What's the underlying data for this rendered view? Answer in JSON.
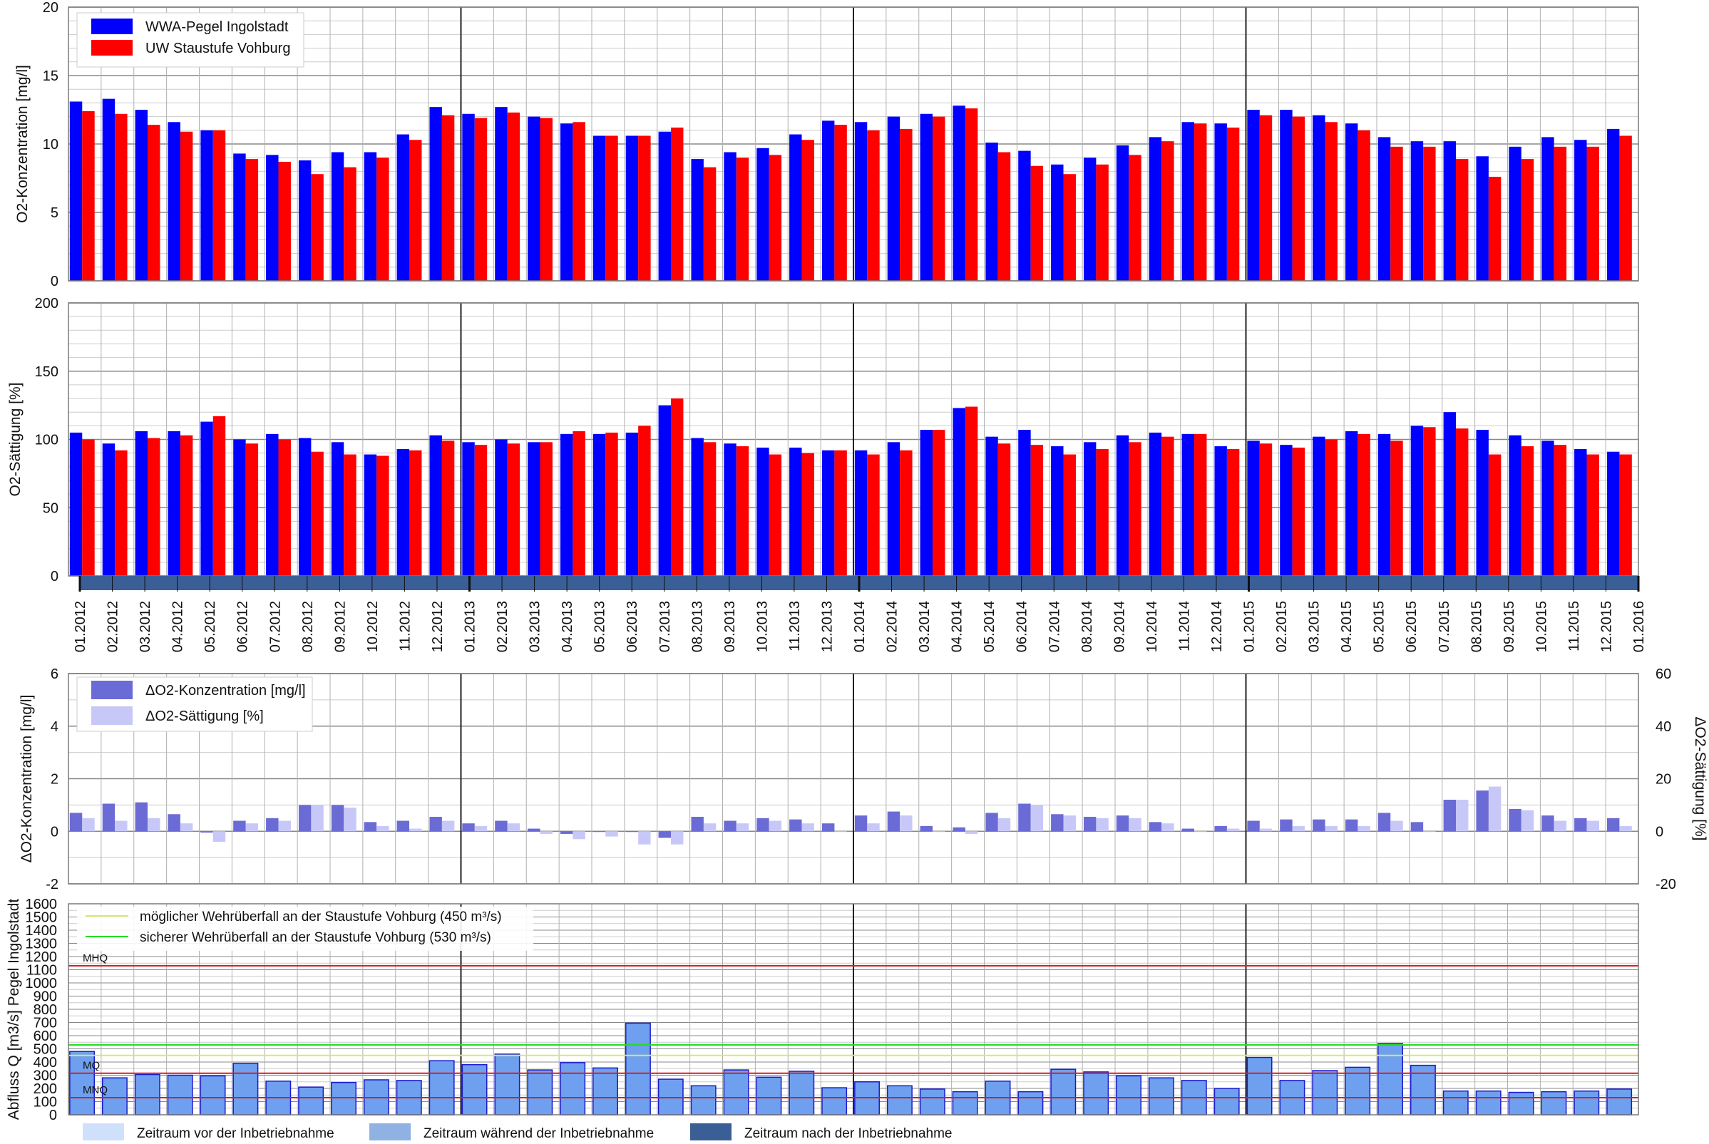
{
  "colors": {
    "ingolstadt": "#0000ff",
    "vohburg": "#ff0000",
    "delta_conc": "#6b6bd6",
    "delta_sat": "#c8c8f8",
    "flow_bar": "#6fa0ef",
    "flow_bar_edge": "#1a1acc",
    "mhq_line": "#d42020",
    "mq_line": "#d42020",
    "mnq_line": "#d42020",
    "possible_weir": "#d8e86a",
    "safe_weir": "#22dd22",
    "period_before": "#cfe0fb",
    "period_during": "#8fb2e2",
    "period_after": "#3a5f96"
  },
  "chart_data": [
    {
      "type": "bar",
      "ylabel": "O2-Konzentration [mg/l]",
      "ylim": [
        0,
        20
      ],
      "yticks": [
        "0",
        "5",
        "10",
        "15",
        "20"
      ],
      "grid": true,
      "legend_position": "top-left",
      "categories": [
        "01.2012",
        "02.2012",
        "03.2012",
        "04.2012",
        "05.2012",
        "06.2012",
        "07.2012",
        "08.2012",
        "09.2012",
        "10.2012",
        "11.2012",
        "12.2012",
        "01.2013",
        "02.2013",
        "03.2013",
        "04.2013",
        "05.2013",
        "06.2013",
        "07.2013",
        "08.2013",
        "09.2013",
        "10.2013",
        "11.2013",
        "12.2013",
        "01.2014",
        "02.2014",
        "03.2014",
        "04.2014",
        "05.2014",
        "06.2014",
        "07.2014",
        "08.2014",
        "09.2014",
        "10.2014",
        "11.2014",
        "12.2014",
        "01.2015",
        "02.2015",
        "03.2015",
        "04.2015",
        "05.2015",
        "06.2015",
        "07.2015",
        "08.2015",
        "09.2015",
        "10.2015",
        "11.2015",
        "12.2015"
      ],
      "series": [
        {
          "name": "WWA-Pegel Ingolstadt",
          "values": [
            13.1,
            13.3,
            12.5,
            11.6,
            11.0,
            9.3,
            9.2,
            8.8,
            9.4,
            9.4,
            10.7,
            12.7,
            12.2,
            12.7,
            12.0,
            11.5,
            10.6,
            10.6,
            10.9,
            8.9,
            9.4,
            9.7,
            10.7,
            11.7,
            11.6,
            12.0,
            12.2,
            12.8,
            10.1,
            9.5,
            8.5,
            9.0,
            9.9,
            10.5,
            11.6,
            11.5,
            12.5,
            12.5,
            12.1,
            11.5,
            10.5,
            10.2,
            10.2,
            9.1,
            9.8,
            10.5,
            10.3,
            11.1
          ]
        },
        {
          "name": "UW Staustufe Vohburg",
          "values": [
            12.4,
            12.2,
            11.4,
            10.9,
            11.0,
            8.9,
            8.7,
            7.8,
            8.3,
            9.0,
            10.3,
            12.1,
            11.9,
            12.3,
            11.9,
            11.6,
            10.6,
            10.6,
            11.2,
            8.3,
            9.0,
            9.2,
            10.3,
            11.4,
            11.0,
            11.1,
            12.0,
            12.6,
            9.4,
            8.4,
            7.8,
            8.5,
            9.2,
            10.2,
            11.5,
            11.2,
            12.1,
            12.0,
            11.6,
            11.0,
            9.8,
            9.8,
            8.9,
            7.6,
            8.9,
            9.8,
            9.8,
            10.6
          ]
        }
      ]
    },
    {
      "type": "bar",
      "ylabel": "O2-Sättigung [%]",
      "ylim": [
        0,
        200
      ],
      "yticks": [
        "0",
        "50",
        "100",
        "150",
        "200"
      ],
      "grid": true,
      "series": [
        {
          "name": "WWA-Pegel Ingolstadt",
          "values": [
            105,
            97,
            106,
            106,
            113,
            100,
            104,
            101,
            98,
            89,
            93,
            103,
            98,
            100,
            98,
            104,
            104,
            105,
            125,
            101,
            97,
            94,
            94,
            92,
            92,
            98,
            107,
            123,
            102,
            107,
            95,
            98,
            103,
            105,
            104,
            95,
            99,
            96,
            102,
            106,
            104,
            110,
            120,
            107,
            103,
            99,
            93,
            91
          ]
        },
        {
          "name": "UW Staustufe Vohburg",
          "values": [
            100,
            92,
            101,
            103,
            117,
            97,
            100,
            91,
            89,
            88,
            92,
            99,
            96,
            97,
            98,
            106,
            105,
            110,
            130,
            98,
            95,
            89,
            90,
            92,
            89,
            92,
            107,
            124,
            97,
            96,
            89,
            93,
            98,
            102,
            104,
            93,
            97,
            94,
            100,
            104,
            99,
            109,
            108,
            89,
            95,
            96,
            89,
            89
          ]
        }
      ]
    },
    {
      "type": "bar",
      "ylabel": "ΔO2-Konzentration [mg/l]",
      "ylabel_right": "ΔO2-Sättigung [%]",
      "ylim": [
        -2,
        6
      ],
      "ylim_right": [
        -20,
        60
      ],
      "yticks": [
        "-2",
        "0",
        "2",
        "4",
        "6"
      ],
      "yticks_right": [
        "-20",
        "0",
        "20",
        "40",
        "60"
      ],
      "grid": true,
      "legend_position": "top-left",
      "series": [
        {
          "name": "ΔO2-Konzentration [mg/l]",
          "axis": "left",
          "values": [
            0.7,
            1.05,
            1.1,
            0.65,
            -0.05,
            0.4,
            0.5,
            1.0,
            1.0,
            0.35,
            0.4,
            0.55,
            0.3,
            0.4,
            0.1,
            -0.1,
            0.0,
            0.0,
            -0.25,
            0.55,
            0.4,
            0.5,
            0.45,
            0.3,
            0.6,
            0.75,
            0.2,
            0.15,
            0.7,
            1.05,
            0.65,
            0.55,
            0.6,
            0.35,
            0.1,
            0.2,
            0.4,
            0.45,
            0.45,
            0.45,
            0.7,
            0.35,
            1.2,
            1.55,
            0.85,
            0.6,
            0.5,
            0.5
          ]
        },
        {
          "name": "ΔO2-Sättigung [%]",
          "axis": "right",
          "values": [
            5,
            4,
            5,
            3,
            -4,
            3,
            4,
            10,
            9,
            2,
            1,
            4,
            2,
            3,
            -1,
            -3,
            -2,
            -5,
            -5,
            3,
            3,
            4,
            3,
            0,
            3,
            6,
            0,
            -1,
            5,
            10,
            6,
            5,
            5,
            3,
            0,
            1,
            1,
            2,
            2,
            2,
            4,
            0,
            12,
            17,
            8,
            4,
            4,
            2
          ]
        }
      ]
    },
    {
      "type": "bar",
      "ylabel": "Abfluss Q [m3/s] Pegel Ingolstadt",
      "ylim": [
        0,
        1600
      ],
      "yticks": [
        "0",
        "100",
        "200",
        "300",
        "400",
        "500",
        "600",
        "700",
        "800",
        "900",
        "1000",
        "1100",
        "1200",
        "1300",
        "1400",
        "1500",
        "1600"
      ],
      "grid": true,
      "values": [
        480,
        280,
        305,
        300,
        295,
        390,
        255,
        210,
        245,
        265,
        260,
        410,
        380,
        460,
        340,
        395,
        355,
        695,
        270,
        220,
        340,
        285,
        330,
        205,
        250,
        220,
        195,
        175,
        255,
        175,
        345,
        325,
        295,
        280,
        260,
        200,
        435,
        260,
        335,
        360,
        540,
        375,
        180,
        180,
        170,
        175,
        180,
        195
      ],
      "reference_lines": [
        {
          "label": "MHQ",
          "value": 1130
        },
        {
          "label": "MQ",
          "value": 315
        },
        {
          "label": "MNQ",
          "value": 130
        },
        {
          "label": "möglicher Wehrüberfall an der Staustufe Vohburg (450 m³/s)",
          "value": 450
        },
        {
          "label": "sicherer Wehrüberfall an der Staustufe Vohburg (530 m³/s)",
          "value": 530
        }
      ]
    }
  ],
  "x_axis_ticks": [
    "01.2012",
    "02.2012",
    "03.2012",
    "04.2012",
    "05.2012",
    "06.2012",
    "07.2012",
    "08.2012",
    "09.2012",
    "10.2012",
    "11.2012",
    "12.2012",
    "01.2013",
    "02.2013",
    "03.2013",
    "04.2013",
    "05.2013",
    "06.2013",
    "07.2013",
    "08.2013",
    "09.2013",
    "10.2013",
    "11.2013",
    "12.2013",
    "01.2014",
    "02.2014",
    "03.2014",
    "04.2014",
    "05.2014",
    "06.2014",
    "07.2014",
    "08.2014",
    "09.2014",
    "10.2014",
    "11.2014",
    "12.2014",
    "01.2015",
    "02.2015",
    "03.2015",
    "04.2015",
    "05.2015",
    "06.2015",
    "07.2015",
    "08.2015",
    "09.2015",
    "10.2015",
    "11.2015",
    "12.2015",
    "01.2016"
  ],
  "period_legend": [
    {
      "label": "Zeitraum vor der Inbetriebnahme",
      "color_key": "period_before"
    },
    {
      "label": "Zeitraum während der Inbetriebnahme",
      "color_key": "period_during"
    },
    {
      "label": "Zeitraum nach der Inbetriebnahme",
      "color_key": "period_after"
    }
  ],
  "timeline_period": "Zeitraum nach der Inbetriebnahme"
}
